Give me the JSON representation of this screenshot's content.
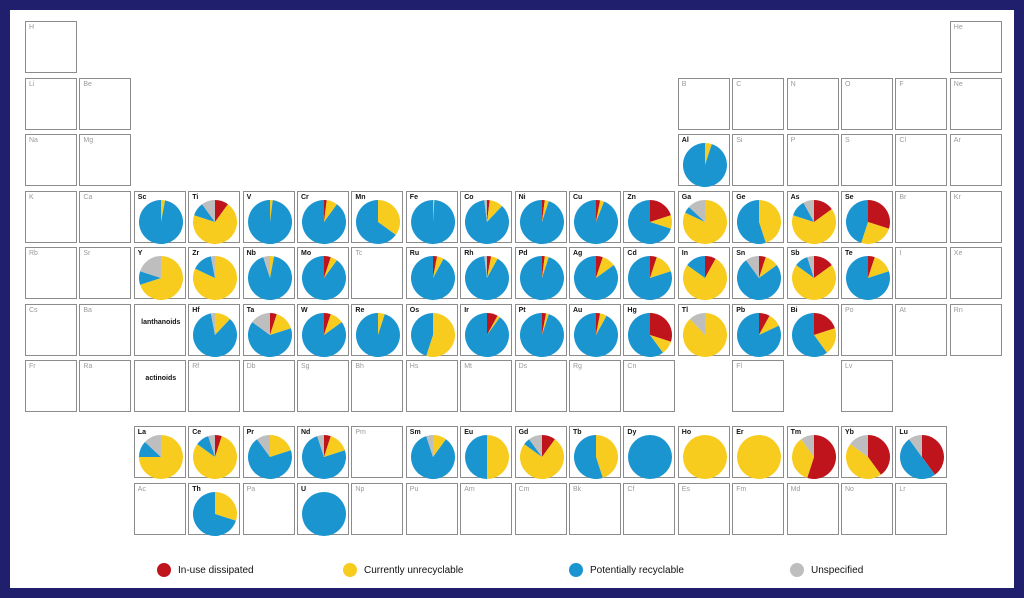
{
  "legend": {
    "dissipated": "In-use dissipated",
    "unrecyclable": "Currently unrecyclable",
    "recyclable": "Potentially recyclable",
    "unspecified": "Unspecified"
  },
  "colors": {
    "dissipated": "#c0141c",
    "unrecyclable": "#f7cc1e",
    "recyclable": "#1a95d0",
    "unspecified": "#bebebe",
    "frame": "#1f1f6e",
    "border": "#8c8c8c"
  },
  "series_labels": {
    "lanthanoids": "lanthanoids",
    "actinoids": "actinoids"
  },
  "main_table": [
    [
      "H",
      "",
      "",
      "",
      "",
      "",
      "",
      "",
      "",
      "",
      "",
      "",
      "",
      "",
      "",
      "",
      "",
      "He"
    ],
    [
      "Li",
      "Be",
      "",
      "",
      "",
      "",
      "",
      "",
      "",
      "",
      "",
      "",
      "B",
      "C",
      "N",
      "O",
      "F",
      "Ne"
    ],
    [
      "Na",
      "Mg",
      "",
      "",
      "",
      "",
      "",
      "",
      "",
      "",
      "",
      "",
      "Al",
      "Si",
      "P",
      "S",
      "Cl",
      "Ar"
    ],
    [
      "K",
      "Ca",
      "Sc",
      "Ti",
      "V",
      "Cr",
      "Mn",
      "Fe",
      "Co",
      "Ni",
      "Cu",
      "Zn",
      "Ga",
      "Ge",
      "As",
      "Se",
      "Br",
      "Kr"
    ],
    [
      "Rb",
      "Sr",
      "Y",
      "Zr",
      "Nb",
      "Mo",
      "Tc",
      "Ru",
      "Rh",
      "Pd",
      "Ag",
      "Cd",
      "In",
      "Sn",
      "Sb",
      "Te",
      "I",
      "Xe"
    ],
    [
      "Cs",
      "Ba",
      "#lanthanoids",
      "Hf",
      "Ta",
      "W",
      "Re",
      "Os",
      "Ir",
      "Pt",
      "Au",
      "Hg",
      "Tl",
      "Pb",
      "Bi",
      "Po",
      "At",
      "Rn"
    ],
    [
      "Fr",
      "Ra",
      "#actinoids",
      "Rf",
      "Db",
      "Sg",
      "Bh",
      "Hs",
      "Mt",
      "Ds",
      "Rg",
      "Cn",
      "",
      "Fl",
      "",
      "Lv",
      "",
      ""
    ]
  ],
  "f_block": [
    [
      "La",
      "Ce",
      "Pr",
      "Nd",
      "Pm",
      "Sm",
      "Eu",
      "Gd",
      "Tb",
      "Dy",
      "Ho",
      "Er",
      "Tm",
      "Yb",
      "Lu"
    ],
    [
      "Ac",
      "Th",
      "Pa",
      "U",
      "Np",
      "Pu",
      "Am",
      "Cm",
      "Bk",
      "Cf",
      "Es",
      "Fm",
      "Md",
      "No",
      "Lr"
    ]
  ],
  "chart_data": {
    "type": "pie",
    "categories": [
      "In-use dissipated",
      "Currently unrecyclable",
      "Potentially recyclable",
      "Unspecified"
    ],
    "series": [
      {
        "name": "Al",
        "values": [
          0,
          5,
          95,
          0
        ]
      },
      {
        "name": "Sc",
        "values": [
          0,
          3,
          97,
          0
        ]
      },
      {
        "name": "Ti",
        "values": [
          10,
          70,
          10,
          10
        ]
      },
      {
        "name": "V",
        "values": [
          0,
          2,
          98,
          0
        ]
      },
      {
        "name": "Cr",
        "values": [
          2,
          8,
          90,
          0
        ]
      },
      {
        "name": "Mn",
        "values": [
          0,
          35,
          65,
          0
        ]
      },
      {
        "name": "Fe",
        "values": [
          0,
          1,
          99,
          0
        ]
      },
      {
        "name": "Co",
        "values": [
          2,
          10,
          86,
          2
        ]
      },
      {
        "name": "Ni",
        "values": [
          2,
          3,
          95,
          0
        ]
      },
      {
        "name": "Cu",
        "values": [
          3,
          3,
          94,
          0
        ]
      },
      {
        "name": "Zn",
        "values": [
          20,
          10,
          70,
          0
        ]
      },
      {
        "name": "Ga",
        "values": [
          0,
          82,
          5,
          13
        ]
      },
      {
        "name": "Ge",
        "values": [
          0,
          45,
          55,
          0
        ]
      },
      {
        "name": "As",
        "values": [
          15,
          65,
          12,
          8
        ]
      },
      {
        "name": "Se",
        "values": [
          30,
          25,
          45,
          0
        ]
      },
      {
        "name": "Y",
        "values": [
          0,
          70,
          10,
          20
        ]
      },
      {
        "name": "Zr",
        "values": [
          0,
          82,
          15,
          3
        ]
      },
      {
        "name": "Nb",
        "values": [
          0,
          3,
          92,
          5
        ]
      },
      {
        "name": "Mo",
        "values": [
          5,
          5,
          90,
          0
        ]
      },
      {
        "name": "Ru",
        "values": [
          3,
          5,
          92,
          0
        ]
      },
      {
        "name": "Rh",
        "values": [
          3,
          5,
          90,
          2
        ]
      },
      {
        "name": "Pd",
        "values": [
          2,
          3,
          95,
          0
        ]
      },
      {
        "name": "Ag",
        "values": [
          5,
          10,
          85,
          0
        ]
      },
      {
        "name": "Cd",
        "values": [
          5,
          15,
          80,
          0
        ]
      },
      {
        "name": "In",
        "values": [
          8,
          77,
          15,
          0
        ]
      },
      {
        "name": "Sn",
        "values": [
          5,
          10,
          75,
          10
        ]
      },
      {
        "name": "Sb",
        "values": [
          15,
          70,
          10,
          5
        ]
      },
      {
        "name": "Te",
        "values": [
          5,
          15,
          80,
          0
        ]
      },
      {
        "name": "Hf",
        "values": [
          0,
          12,
          85,
          3
        ]
      },
      {
        "name": "Ta",
        "values": [
          5,
          15,
          65,
          15
        ]
      },
      {
        "name": "W",
        "values": [
          5,
          10,
          85,
          0
        ]
      },
      {
        "name": "Re",
        "values": [
          0,
          5,
          95,
          0
        ]
      },
      {
        "name": "Os",
        "values": [
          0,
          55,
          45,
          0
        ]
      },
      {
        "name": "Ir",
        "values": [
          8,
          2,
          90,
          0
        ]
      },
      {
        "name": "Pt",
        "values": [
          3,
          2,
          95,
          0
        ]
      },
      {
        "name": "Au",
        "values": [
          3,
          5,
          92,
          0
        ]
      },
      {
        "name": "Hg",
        "values": [
          30,
          10,
          60,
          0
        ]
      },
      {
        "name": "Tl",
        "values": [
          0,
          88,
          0,
          12
        ]
      },
      {
        "name": "Pb",
        "values": [
          8,
          10,
          82,
          0
        ]
      },
      {
        "name": "Bi",
        "values": [
          20,
          20,
          60,
          0
        ]
      },
      {
        "name": "La",
        "values": [
          0,
          75,
          12,
          13
        ]
      },
      {
        "name": "Ce",
        "values": [
          5,
          80,
          10,
          5
        ]
      },
      {
        "name": "Pr",
        "values": [
          0,
          20,
          70,
          10
        ]
      },
      {
        "name": "Nd",
        "values": [
          5,
          15,
          75,
          5
        ]
      },
      {
        "name": "Sm",
        "values": [
          0,
          10,
          85,
          5
        ]
      },
      {
        "name": "Eu",
        "values": [
          0,
          50,
          50,
          0
        ]
      },
      {
        "name": "Gd",
        "values": [
          10,
          75,
          5,
          10
        ]
      },
      {
        "name": "Tb",
        "values": [
          0,
          45,
          55,
          0
        ]
      },
      {
        "name": "Dy",
        "values": [
          0,
          0,
          100,
          0
        ]
      },
      {
        "name": "Ho",
        "values": [
          0,
          100,
          0,
          0
        ]
      },
      {
        "name": "Er",
        "values": [
          0,
          100,
          0,
          0
        ]
      },
      {
        "name": "Tm",
        "values": [
          55,
          35,
          0,
          10
        ]
      },
      {
        "name": "Yb",
        "values": [
          40,
          45,
          0,
          15
        ]
      },
      {
        "name": "Lu",
        "values": [
          40,
          0,
          50,
          10
        ]
      },
      {
        "name": "Th",
        "values": [
          0,
          30,
          70,
          0
        ]
      },
      {
        "name": "U",
        "values": [
          0,
          0,
          100,
          0
        ]
      }
    ]
  }
}
